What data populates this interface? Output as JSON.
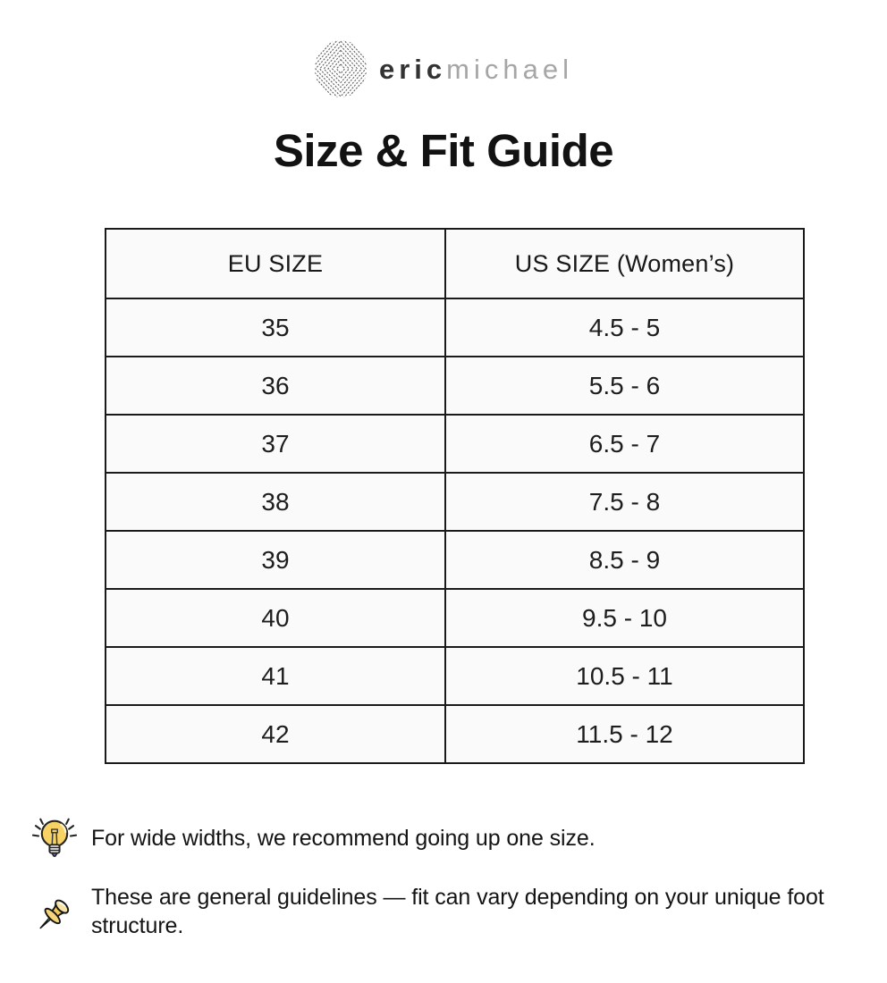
{
  "brand": {
    "logo_mark": "concentric-diamond-pattern",
    "name_primary": "eric",
    "name_secondary": "michael"
  },
  "title": "Size & Fit Guide",
  "size_table": {
    "headers": [
      "EU SIZE",
      "US SIZE (Women’s)"
    ],
    "rows": [
      [
        "35",
        "4.5 - 5"
      ],
      [
        "36",
        "5.5 - 6"
      ],
      [
        "37",
        "6.5 - 7"
      ],
      [
        "38",
        "7.5 - 8"
      ],
      [
        "39",
        "8.5 - 9"
      ],
      [
        "40",
        "9.5 - 10"
      ],
      [
        "41",
        "10.5 - 11"
      ],
      [
        "42",
        "11.5 - 12"
      ]
    ]
  },
  "notes": [
    {
      "icon": "lightbulb-icon",
      "text": "For wide widths, we recommend going up one size."
    },
    {
      "icon": "pushpin-icon",
      "text": "These are general guidelines — fit can vary depending on your unique foot structure."
    }
  ],
  "colors": {
    "page_background": "#ffffff",
    "cell_background": "#fafafa",
    "table_border": "#1a1a1a",
    "text": "#1d1d1d",
    "brand_primary": "#333333",
    "brand_secondary": "#a6a6a6",
    "bulb_yellow": "#f7d264",
    "pin_gold": "#f2c85c"
  }
}
